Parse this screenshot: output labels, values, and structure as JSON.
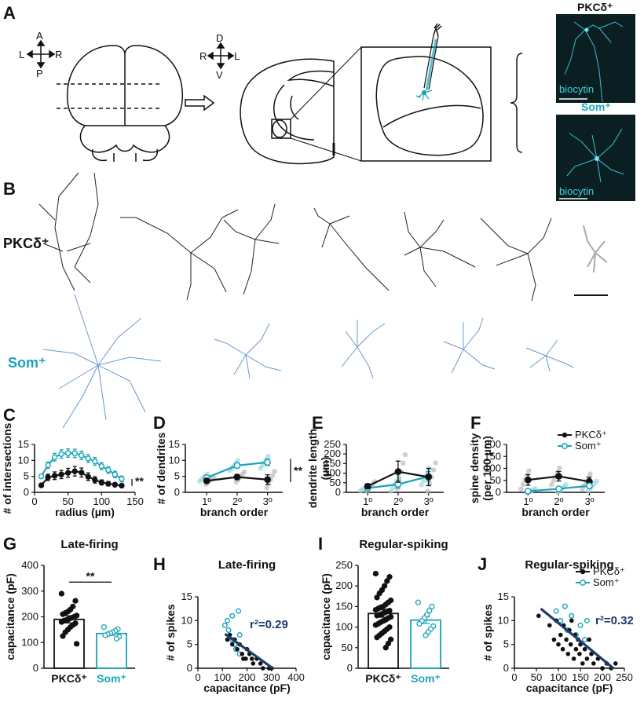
{
  "colors": {
    "pkc": "#111111",
    "som": "#1aa3b8",
    "som_light": "#9fd7e0",
    "pkc_light": "#bbbbbb",
    "regression": "#1f3a6b",
    "micrograph_bg": "#0b1f23"
  },
  "panel_labels": [
    "A",
    "B",
    "C",
    "D",
    "E",
    "F",
    "G",
    "H",
    "I",
    "J"
  ],
  "panelA": {
    "orient1": {
      "a": "A",
      "p": "P",
      "l": "L",
      "r": "R"
    },
    "orient2": {
      "d": "D",
      "v": "V",
      "r": "R",
      "l": "L"
    },
    "micrograph_labels": {
      "pkc": "PKCδ⁺",
      "som": "Som⁺",
      "stain_top": "biocytin",
      "stain_bottom": "biocytin"
    }
  },
  "panelB": {
    "row1_label": "PKCδ⁺",
    "row2_label": "Som⁺"
  },
  "chart_data": [
    {
      "panel": "C",
      "type": "line",
      "xlabel": "radius (µm)",
      "ylabel": "# of intersections",
      "xlim": [
        0,
        150
      ],
      "ylim": [
        0,
        15
      ],
      "xticks": [
        "0",
        "50",
        "100",
        "150"
      ],
      "yticks": [
        "0",
        "5",
        "10",
        "15"
      ],
      "significance": "**",
      "series": [
        {
          "group": "som",
          "x": [
            10,
            20,
            30,
            40,
            50,
            60,
            70,
            80,
            90,
            100,
            110,
            120,
            130
          ],
          "y": [
            5,
            8.5,
            11,
            12,
            12.3,
            12.2,
            11.6,
            10.6,
            9.7,
            8.2,
            7,
            5.6,
            4.2
          ],
          "err": [
            0.6,
            1,
            1.2,
            1.3,
            1.3,
            1.3,
            1.3,
            1.2,
            1.2,
            1.1,
            1,
            1,
            0.9
          ]
        },
        {
          "group": "pkc",
          "x": [
            10,
            20,
            30,
            40,
            50,
            60,
            70,
            80,
            90,
            100,
            110,
            120,
            130
          ],
          "y": [
            2.2,
            4.7,
            5.2,
            5.6,
            6.1,
            6.6,
            6.2,
            4.9,
            3.9,
            3.1,
            2.7,
            2.4,
            2.1
          ],
          "err": [
            0.5,
            1,
            1.2,
            1.3,
            1.4,
            1.5,
            1.4,
            1.2,
            1,
            0.8,
            0.7,
            0.6,
            0.5
          ]
        }
      ]
    },
    {
      "panel": "D",
      "type": "line",
      "xlabel": "branch order",
      "ylabel": "# of dendrites",
      "categories": [
        "1º",
        "2º",
        "3º"
      ],
      "ylim": [
        0,
        15
      ],
      "yticks": [
        "0",
        "5",
        "10",
        "15"
      ],
      "significance": "**",
      "series": [
        {
          "group": "som",
          "values": [
            4.6,
            8.4,
            9.4
          ],
          "err": [
            0.5,
            0.8,
            1.0
          ]
        },
        {
          "group": "pkc",
          "values": [
            3.6,
            4.8,
            4.0
          ],
          "err": [
            0.5,
            0.8,
            1.5
          ]
        }
      ]
    },
    {
      "panel": "E",
      "type": "line",
      "xlabel": "branch order",
      "ylabel": "dendrite length (µm)",
      "categories": [
        "1º",
        "2º",
        "3º"
      ],
      "ylim": [
        0,
        250
      ],
      "yticks": [
        "0",
        "50",
        "100",
        "150",
        "200",
        "250"
      ],
      "series": [
        {
          "group": "som",
          "values": [
            22,
            42,
            83
          ],
          "err": [
            5,
            20,
            25
          ]
        },
        {
          "group": "pkc",
          "values": [
            32,
            108,
            80
          ],
          "err": [
            12,
            55,
            45
          ]
        }
      ]
    },
    {
      "panel": "F",
      "type": "line",
      "xlabel": "branch order",
      "ylabel": "spine density (per 100 µm)",
      "categories": [
        "1º",
        "2º",
        "3º"
      ],
      "ylim": [
        0,
        200
      ],
      "yticks": [
        "0",
        "50",
        "100",
        "150",
        "200"
      ],
      "legend": [
        "PKCδ⁺",
        "Som⁺"
      ],
      "series": [
        {
          "group": "pkc",
          "values": [
            52,
            67,
            45
          ],
          "err": [
            22,
            20,
            18
          ]
        },
        {
          "group": "som",
          "values": [
            5,
            15,
            27
          ],
          "err": [
            4,
            8,
            10
          ]
        }
      ]
    },
    {
      "panel": "G",
      "type": "bar",
      "title": "Late-firing",
      "ylabel": "capacitance (pF)",
      "categories": [
        "PKCδ⁺",
        "Som⁺"
      ],
      "values": [
        190,
        135
      ],
      "err": [
        14,
        7
      ],
      "ylim": [
        0,
        400
      ],
      "yticks": [
        "0",
        "100",
        "200",
        "300",
        "400"
      ],
      "significance": "**",
      "points_pkc": [
        290,
        262,
        240,
        228,
        220,
        215,
        210,
        205,
        200,
        196,
        192,
        188,
        185,
        180,
        175,
        168,
        160,
        150,
        140,
        125,
        95
      ],
      "points_som": [
        160,
        152,
        145,
        140,
        136,
        132,
        128,
        122,
        115
      ]
    },
    {
      "panel": "H",
      "type": "scatter",
      "title": "Late-firing",
      "xlabel": "capacitance (pF)",
      "ylabel": "# of spikes",
      "xlim": [
        0,
        400
      ],
      "ylim": [
        0,
        15
      ],
      "xticks": [
        "0",
        "100",
        "200",
        "300",
        "400"
      ],
      "yticks": [
        "0",
        "5",
        "10",
        "15"
      ],
      "r2": "r²=0.29",
      "fit": {
        "x": [
          110,
          305
        ],
        "y": [
          7.2,
          0
        ]
      },
      "points_som": [
        [
          110,
          9
        ],
        [
          120,
          10
        ],
        [
          125,
          8
        ],
        [
          140,
          6
        ],
        [
          140,
          11
        ],
        [
          150,
          5
        ],
        [
          155,
          4
        ],
        [
          165,
          12
        ],
        [
          170,
          3
        ],
        [
          170,
          7
        ]
      ],
      "points_pkc": [
        [
          120,
          6
        ],
        [
          130,
          7
        ],
        [
          140,
          5
        ],
        [
          150,
          6
        ],
        [
          160,
          4
        ],
        [
          170,
          5
        ],
        [
          180,
          3
        ],
        [
          185,
          2
        ],
        [
          195,
          2
        ],
        [
          200,
          4
        ],
        [
          210,
          3
        ],
        [
          220,
          2
        ],
        [
          225,
          1
        ],
        [
          240,
          2
        ],
        [
          255,
          1
        ],
        [
          265,
          0
        ],
        [
          290,
          0
        ],
        [
          300,
          0
        ]
      ]
    },
    {
      "panel": "I",
      "type": "bar",
      "title": "Regular-spiking",
      "ylabel": "capacitance (pF)",
      "categories": [
        "PKCδ⁺",
        "Som⁺"
      ],
      "values": [
        133,
        117
      ],
      "err": [
        9,
        8
      ],
      "ylim": [
        0,
        250
      ],
      "yticks": [
        "0",
        "50",
        "100",
        "150",
        "200",
        "250"
      ],
      "points_pkc": [
        230,
        222,
        212,
        200,
        190,
        182,
        172,
        165,
        160,
        155,
        150,
        148,
        145,
        142,
        140,
        138,
        135,
        132,
        130,
        128,
        125,
        122,
        118,
        115,
        112,
        108,
        105,
        100,
        95,
        90,
        85,
        80,
        75,
        70,
        60,
        50
      ],
      "points_som": [
        160,
        150,
        140,
        130,
        122,
        115,
        108,
        102,
        95,
        88,
        80
      ]
    },
    {
      "panel": "J",
      "type": "scatter",
      "title": "Regular-spiking",
      "xlabel": "capacitance (pF)",
      "ylabel": "# of spikes",
      "xlim": [
        0,
        250
      ],
      "ylim": [
        0,
        15
      ],
      "xticks": [
        "0",
        "50",
        "100",
        "150",
        "200",
        "250"
      ],
      "yticks": [
        "0",
        "5",
        "10",
        "15"
      ],
      "r2": "r²=0.32",
      "legend": [
        "PKCδ⁺",
        "Som⁺"
      ],
      "fit": {
        "x": [
          60,
          225
        ],
        "y": [
          12.5,
          0
        ]
      },
      "points_som": [
        [
          95,
          12
        ],
        [
          105,
          10
        ],
        [
          115,
          13
        ],
        [
          120,
          8
        ],
        [
          130,
          11
        ],
        [
          140,
          7
        ],
        [
          150,
          9
        ],
        [
          160,
          6
        ],
        [
          165,
          10
        ]
      ],
      "points_pkc": [
        [
          55,
          11
        ],
        [
          80,
          9
        ],
        [
          90,
          6
        ],
        [
          95,
          10
        ],
        [
          100,
          5
        ],
        [
          105,
          7
        ],
        [
          110,
          4
        ],
        [
          112,
          9
        ],
        [
          118,
          6
        ],
        [
          122,
          3
        ],
        [
          125,
          8
        ],
        [
          128,
          5
        ],
        [
          130,
          10
        ],
        [
          135,
          2
        ],
        [
          138,
          7
        ],
        [
          140,
          4
        ],
        [
          145,
          6
        ],
        [
          148,
          3
        ],
        [
          150,
          5
        ],
        [
          155,
          1
        ],
        [
          160,
          4
        ],
        [
          165,
          2
        ],
        [
          170,
          6
        ],
        [
          175,
          3
        ],
        [
          180,
          1
        ],
        [
          190,
          2
        ],
        [
          200,
          0
        ],
        [
          210,
          1
        ],
        [
          220,
          0
        ],
        [
          230,
          1
        ]
      ]
    }
  ]
}
